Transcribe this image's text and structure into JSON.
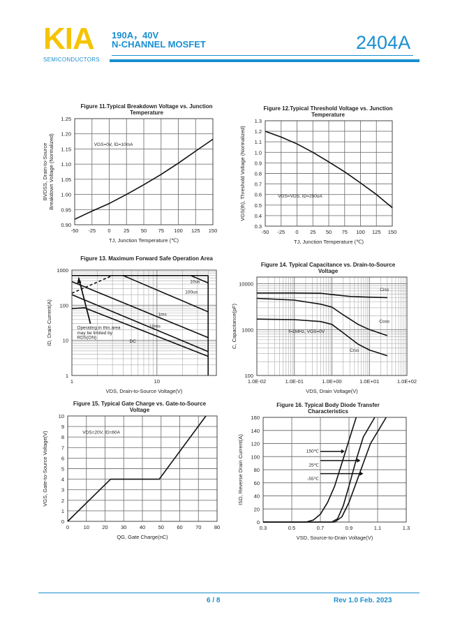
{
  "header": {
    "brand": "KIA",
    "brand_sub": "SEMICONDUCTORS",
    "spec_line1": "190A，40V",
    "spec_line2": "N-CHANNEL MOSFET",
    "part_number": "2404A",
    "colors": {
      "brand": "#f5c400",
      "accent": "#1a8fd0"
    }
  },
  "footer": {
    "page": "6 / 8",
    "revision": "Rev 1.0 Feb. 2023"
  },
  "chart_data": [
    {
      "type": "line",
      "title": [
        "Figure 11.Typical Breakdown Voltage vs. Junction",
        "Temperature"
      ],
      "xlabel": "TJ, Junction Temperature (℃)",
      "ylabel": [
        "BVDSS, Drain-to-Source",
        "Breakdown Voltage (Normalized)"
      ],
      "xlim": [
        -50,
        150
      ],
      "ylim": [
        0.9,
        1.25
      ],
      "xscale": "linear",
      "yscale": "linear",
      "grid": true,
      "xticks": [
        -50,
        -25,
        0,
        25,
        50,
        75,
        100,
        125,
        150
      ],
      "yticks": [
        0.9,
        0.95,
        1.0,
        1.05,
        1.1,
        1.15,
        1.2,
        1.25
      ],
      "ytick_labels": [
        "0.90",
        "0.95",
        "1.00",
        "1.05",
        "1.10",
        "1.15",
        "1.20",
        "1.25"
      ],
      "annotations": [
        "VGS=0V, ID=10mA"
      ],
      "series": [
        {
          "x": [
            -50,
            -25,
            0,
            25,
            50,
            75,
            100,
            125,
            150
          ],
          "y": [
            0.918,
            0.945,
            0.97,
            1.0,
            1.032,
            1.066,
            1.103,
            1.143,
            1.182
          ]
        }
      ]
    },
    {
      "type": "line",
      "title": [
        "Figure 12.Typical Threshold Voltage vs. Junction",
        "Temperature"
      ],
      "xlabel": "TJ, Junction Temperature (℃)",
      "ylabel": [
        "VGS(th), Threshold Voltage (Normalized)"
      ],
      "xlim": [
        -50,
        150
      ],
      "ylim": [
        0.3,
        1.3
      ],
      "xscale": "linear",
      "yscale": "linear",
      "grid": true,
      "xticks": [
        -50,
        -25,
        0,
        25,
        50,
        75,
        100,
        125,
        150
      ],
      "yticks": [
        0.3,
        0.4,
        0.5,
        0.6,
        0.7,
        0.8,
        0.9,
        1.0,
        1.1,
        1.2,
        1.3
      ],
      "ytick_labels": [
        "0.3",
        "0.4",
        "0.5",
        "0.6",
        "0.7",
        "0.8",
        "0.9",
        "1.0",
        "1.1",
        "1.2",
        "1.3"
      ],
      "annotations": [
        "VGS=VDS, ID=250uA"
      ],
      "series": [
        {
          "x": [
            -50,
            -25,
            0,
            25,
            50,
            75,
            100,
            125,
            150
          ],
          "y": [
            1.2,
            1.145,
            1.08,
            1.0,
            0.91,
            0.815,
            0.71,
            0.6,
            0.475
          ]
        }
      ]
    },
    {
      "type": "line",
      "title": [
        "Figure 13. Maximum Forward Safe Operation Area"
      ],
      "xlabel": "VDS, Drain-to-Source Voltage(V)",
      "ylabel": [
        "ID, Drain Current(A)"
      ],
      "xlim": [
        1,
        50
      ],
      "ylim": [
        1,
        1000
      ],
      "xscale": "log",
      "yscale": "log",
      "grid": true,
      "xticks": [
        1,
        10
      ],
      "yticks": [
        1,
        10,
        100,
        1000
      ],
      "ytick_labels": [
        "1",
        "10",
        "100",
        "1000"
      ],
      "annotations": [
        "10us",
        "100us",
        "1ms",
        "10ms",
        "DC",
        "Operating in this area",
        "may be limited by",
        "RDS(ON)"
      ],
      "series": [
        {
          "dashed": true,
          "x": [
            1,
            3
          ],
          "y": [
            220,
            700
          ]
        },
        {
          "x": [
            1,
            40
          ],
          "y": [
            700,
            700
          ]
        },
        {
          "name": "10us",
          "x": [
            25,
            40
          ],
          "y": [
            700,
            430
          ]
        },
        {
          "name": "100us",
          "x": [
            4,
            40
          ],
          "y": [
            700,
            65
          ]
        },
        {
          "name": "1ms",
          "x": [
            1,
            40
          ],
          "y": [
            470,
            12
          ]
        },
        {
          "name": "10ms",
          "x": [
            1,
            40
          ],
          "y": [
            200,
            4.8
          ]
        },
        {
          "name": "DC",
          "x": [
            1,
            1.4,
            40
          ],
          "y": [
            80,
            85,
            3.5
          ]
        },
        {
          "x": [
            40,
            40
          ],
          "y": [
            1,
            700
          ]
        }
      ]
    },
    {
      "type": "line",
      "title": [
        "Figure 14. Typical Capacitance vs. Drain-to-Source",
        "Voltage"
      ],
      "xlabel": "VDS, Drain Voltage(V)",
      "ylabel": [
        "C, Capacitance(pF)"
      ],
      "xlim": [
        0.01,
        100
      ],
      "ylim": [
        100,
        14000
      ],
      "xscale": "log",
      "yscale": "log",
      "grid": true,
      "xticks": [
        0.01,
        0.1,
        1,
        10,
        100
      ],
      "xtick_labels": [
        "1.0E-02",
        "1.0E-01",
        "1.0E+00",
        "1.0E+01",
        "1.0E+02"
      ],
      "yticks": [
        100,
        1000,
        10000
      ],
      "ytick_labels": [
        "100",
        "1000",
        "10000"
      ],
      "annotations": [
        "f=1MHz,  VGS=0V"
      ],
      "series": [
        {
          "name": "Ciss",
          "x": [
            0.01,
            0.1,
            0.5,
            1,
            3,
            10,
            30
          ],
          "y": [
            6300,
            6300,
            6200,
            5800,
            5300,
            5100,
            5000
          ]
        },
        {
          "name": "Coss",
          "x": [
            0.01,
            0.1,
            0.5,
            1,
            2,
            5,
            10,
            30
          ],
          "y": [
            4800,
            4400,
            3600,
            3100,
            2100,
            1300,
            1000,
            740
          ]
        },
        {
          "name": "Crss",
          "x": [
            0.01,
            0.1,
            0.5,
            1,
            2,
            5,
            10,
            30
          ],
          "y": [
            1700,
            1650,
            1500,
            1300,
            850,
            480,
            360,
            270
          ]
        }
      ]
    },
    {
      "type": "line",
      "title": [
        "Figure 15. Typical Gate Charge vs. Gate-to-Source",
        "Voltage"
      ],
      "xlabel": "QG, Gate Charge(nC)",
      "ylabel": [
        "VGS, Gate-to-Source Voltage(V)"
      ],
      "xlim": [
        0,
        80
      ],
      "ylim": [
        0,
        10
      ],
      "xscale": "linear",
      "yscale": "linear",
      "grid": true,
      "xticks": [
        0,
        10,
        20,
        30,
        40,
        50,
        60,
        70,
        80
      ],
      "yticks": [
        0,
        1,
        2,
        3,
        4,
        5,
        6,
        7,
        8,
        9,
        10
      ],
      "ytick_labels": [
        "0",
        "1",
        "2",
        "3",
        "4",
        "5",
        "6",
        "7",
        "8",
        "9",
        "10"
      ],
      "annotations": [
        "VDS=20V, ID=60A"
      ],
      "series": [
        {
          "x": [
            0,
            23,
            49,
            74
          ],
          "y": [
            0,
            4,
            4,
            10
          ]
        }
      ]
    },
    {
      "type": "line",
      "title": [
        "Figure 16. Typical Body Diode Transfer",
        "Characteristics"
      ],
      "xlabel": "VSD, Source-to-Drain Voltage(V)",
      "ylabel": [
        "ISD, Reverse Drain Current(A)"
      ],
      "xlim": [
        0.3,
        1.3
      ],
      "ylim": [
        0,
        160
      ],
      "xscale": "linear",
      "yscale": "linear",
      "grid": true,
      "xticks": [
        0.3,
        0.5,
        0.7,
        0.9,
        1.1,
        1.3
      ],
      "xtick_labels": [
        "0.3",
        "0.5",
        "0.7",
        "0.9",
        "1.1",
        "1.3"
      ],
      "yticks": [
        0,
        20,
        40,
        60,
        80,
        100,
        120,
        140,
        160
      ],
      "ytick_labels": [
        "0",
        "20",
        "40",
        "60",
        "80",
        "100",
        "120",
        "140",
        "160"
      ],
      "annotations": [
        "150℃",
        "25℃",
        "-55℃"
      ],
      "series": [
        {
          "name": "150℃",
          "x": [
            0.3,
            0.6,
            0.65,
            0.7,
            0.75,
            0.8,
            0.85,
            0.9,
            0.95
          ],
          "y": [
            0,
            0,
            3,
            12,
            30,
            55,
            90,
            125,
            160
          ]
        },
        {
          "name": "25℃",
          "x": [
            0.3,
            0.78,
            0.82,
            0.86,
            0.9,
            0.95,
            1.0,
            1.08
          ],
          "y": [
            0,
            0,
            5,
            25,
            55,
            95,
            130,
            160
          ]
        },
        {
          "name": "-55℃",
          "x": [
            0.3,
            0.8,
            0.85,
            0.9,
            0.95,
            1.0,
            1.05,
            1.16
          ],
          "y": [
            0,
            0,
            8,
            30,
            60,
            90,
            120,
            160
          ]
        }
      ]
    }
  ]
}
